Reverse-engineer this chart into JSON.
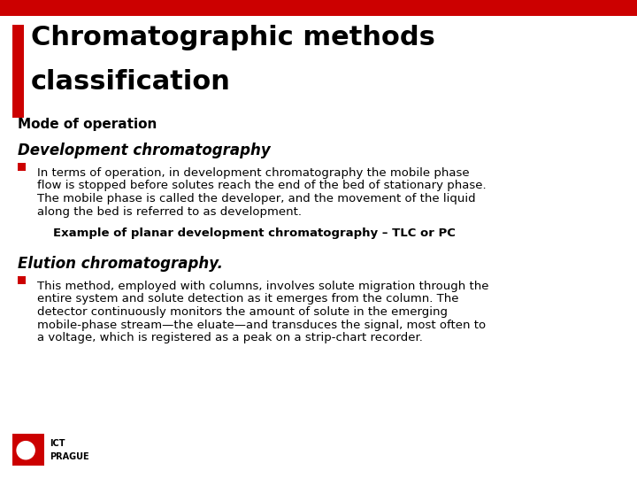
{
  "bg_color": "#ffffff",
  "top_bar_color": "#cc0000",
  "red_accent_color": "#cc0000",
  "title_line1": "Chromatographic methods",
  "title_line2": "classification",
  "title_color": "#000000",
  "title_fontsize": 22,
  "section_label": "Mode of operation",
  "section_label_fontsize": 11,
  "subsection1": "Development chromatography",
  "subsection1_fontsize": 12,
  "bullet1_lines": [
    "In terms of operation, in development chromatography the mobile phase",
    "flow is stopped before solutes reach the end of the bed of stationary phase.",
    "The mobile phase is called the developer, and the movement of the liquid",
    "along the bed is referred to as development."
  ],
  "bullet_fontsize": 9.5,
  "example_text": "Example of planar development chromatography – TLC or PC",
  "example_fontsize": 9.5,
  "subsection2": "Elution chromatography.",
  "subsection2_fontsize": 12,
  "bullet2_lines": [
    "This method, employed with columns, involves solute migration through the",
    "entire system and solute detection as it emerges from the column. The",
    "detector continuously monitors the amount of solute in the emerging",
    "mobile-phase stream—the eluate—and transduces the signal, most often to",
    "a voltage, which is registered as a peak on a strip-chart recorder."
  ],
  "logo_text1": "ICT",
  "logo_text2": "PRAGUE",
  "logo_fontsize": 7
}
